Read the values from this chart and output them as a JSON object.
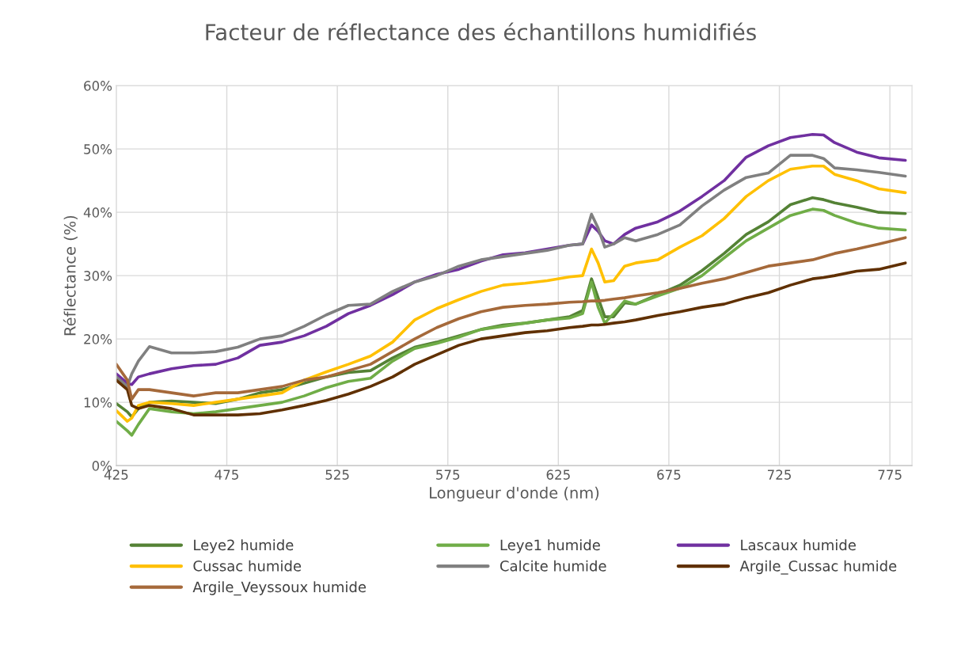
{
  "chart_data": {
    "type": "line",
    "title": "Facteur de réflectance des échantillons humidifiés",
    "xlabel": "Longueur d'onde (nm)",
    "ylabel": "Réflectance (%)",
    "x": [
      425,
      430,
      432,
      435,
      440,
      450,
      460,
      470,
      480,
      490,
      500,
      510,
      520,
      530,
      540,
      550,
      560,
      570,
      580,
      590,
      600,
      610,
      620,
      630,
      636,
      640,
      643,
      646,
      650,
      655,
      660,
      670,
      680,
      690,
      700,
      710,
      720,
      730,
      740,
      745,
      750,
      760,
      770,
      782
    ],
    "xlim": [
      425,
      785
    ],
    "xticks": [
      425,
      475,
      525,
      575,
      625,
      675,
      725,
      775
    ],
    "ylim": [
      0,
      60
    ],
    "yticks": [
      {
        "value": 0,
        "label": "0%"
      },
      {
        "value": 10,
        "label": "10%"
      },
      {
        "value": 20,
        "label": "20%"
      },
      {
        "value": 30,
        "label": "30%"
      },
      {
        "value": 40,
        "label": "40%"
      },
      {
        "value": 50,
        "label": "50%"
      },
      {
        "value": 60,
        "label": "60%"
      }
    ],
    "grid": true,
    "legend": "bottom",
    "series": [
      {
        "name": "Leye2 humide",
        "color": "#548235",
        "values": [
          9.8,
          8.5,
          7.7,
          9,
          10,
          10.2,
          10,
          9.8,
          10.5,
          11.5,
          12,
          13,
          14,
          14.7,
          15,
          17,
          18.7,
          19.5,
          20.5,
          21.5,
          22.2,
          22.5,
          23,
          23.5,
          24.5,
          29.5,
          26.5,
          23.5,
          23.5,
          25.7,
          25.5,
          27,
          28.5,
          30.8,
          33.5,
          36.5,
          38.5,
          41.2,
          42.3,
          42,
          41.5,
          40.8,
          40,
          39.8
        ]
      },
      {
        "name": "Leye1 humide",
        "color": "#70ad47",
        "values": [
          7,
          5.5,
          4.8,
          6.5,
          9,
          8.5,
          8.2,
          8.5,
          9,
          9.5,
          10,
          11,
          12.3,
          13.3,
          13.8,
          16.5,
          18.5,
          19.3,
          20.3,
          21.5,
          22,
          22.5,
          23,
          23.3,
          24,
          29,
          25,
          22.5,
          24,
          26,
          25.5,
          26.8,
          28,
          30,
          32.8,
          35.5,
          37.5,
          39.5,
          40.5,
          40.3,
          39.5,
          38.3,
          37.5,
          37.2
        ]
      },
      {
        "name": "Lascaux humide",
        "color": "#7030a0",
        "values": [
          14.5,
          13,
          12.8,
          14,
          14.5,
          15.3,
          15.8,
          16,
          17,
          19,
          19.5,
          20.5,
          22,
          24,
          25.3,
          27,
          29,
          30.2,
          31,
          32.3,
          33.3,
          33.6,
          34.2,
          34.8,
          35,
          38,
          37,
          35.5,
          35,
          36.5,
          37.5,
          38.5,
          40.2,
          42.5,
          45,
          48.7,
          50.5,
          51.8,
          52.3,
          52.2,
          51,
          49.5,
          48.6,
          48.2
        ]
      },
      {
        "name": "Cussac humide",
        "color": "#ffc000",
        "values": [
          8.7,
          7,
          7.5,
          9.5,
          10,
          9.8,
          9.5,
          10,
          10.5,
          11,
          11.5,
          13.5,
          14.8,
          16,
          17.3,
          19.5,
          23,
          24.8,
          26.2,
          27.5,
          28.5,
          28.8,
          29.2,
          29.8,
          30,
          34.2,
          32,
          29,
          29.2,
          31.5,
          32,
          32.5,
          34.5,
          36.3,
          39,
          42.5,
          45,
          46.8,
          47.3,
          47.3,
          46,
          45,
          43.7,
          43.1
        ]
      },
      {
        "name": "Calcite humide",
        "color": "#808080",
        "values": [
          14,
          12.5,
          14.5,
          16.5,
          18.8,
          17.8,
          17.8,
          18,
          18.7,
          20,
          20.5,
          22,
          23.8,
          25.3,
          25.5,
          27.5,
          29,
          30,
          31.5,
          32.5,
          33,
          33.5,
          34,
          34.8,
          35,
          39.7,
          37.5,
          34.5,
          35,
          36,
          35.5,
          36.5,
          38,
          41,
          43.5,
          45.5,
          46.2,
          49,
          49,
          48.5,
          47,
          46.7,
          46.3,
          45.7
        ]
      },
      {
        "name": "Argile_Cussac humide",
        "color": "#603000",
        "values": [
          13.5,
          12,
          9.5,
          9,
          9.5,
          9,
          8,
          8,
          8,
          8.2,
          8.8,
          9.5,
          10.3,
          11.3,
          12.5,
          14,
          16,
          17.5,
          19,
          20,
          20.5,
          21,
          21.3,
          21.8,
          22,
          22.2,
          22.2,
          22.3,
          22.5,
          22.7,
          23,
          23.7,
          24.3,
          25,
          25.5,
          26.5,
          27.3,
          28.5,
          29.5,
          29.7,
          30,
          30.7,
          31,
          32
        ]
      },
      {
        "name": "Argile_Veyssoux humide",
        "color": "#a5693a",
        "values": [
          16,
          13.5,
          10.5,
          12,
          12,
          11.5,
          11,
          11.5,
          11.5,
          12,
          12.5,
          13.5,
          14,
          15,
          16,
          18,
          20,
          21.8,
          23.2,
          24.3,
          25,
          25.3,
          25.5,
          25.8,
          25.9,
          26,
          26,
          26.1,
          26.3,
          26.5,
          26.8,
          27.3,
          28,
          28.8,
          29.5,
          30.5,
          31.5,
          32,
          32.5,
          33,
          33.5,
          34.2,
          35,
          36
        ]
      }
    ]
  }
}
